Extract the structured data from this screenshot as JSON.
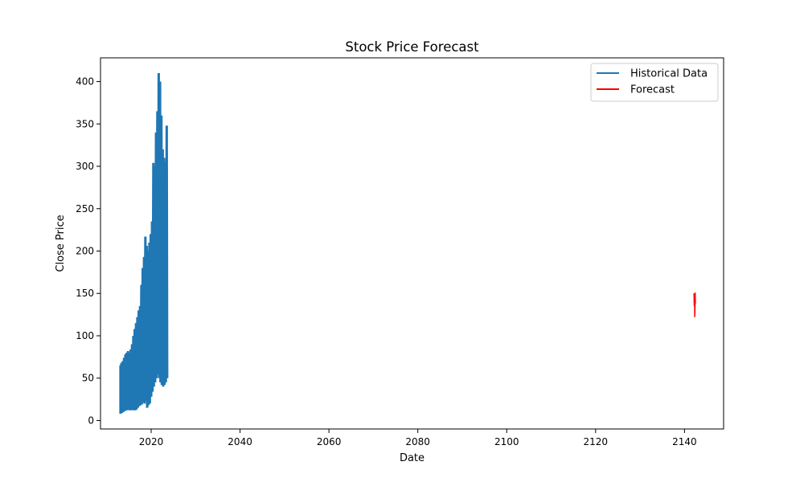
{
  "chart_data": {
    "type": "line",
    "title": "Stock Price Forecast",
    "xlabel": "Date",
    "ylabel": "Close Price",
    "xlim": [
      2008.6,
      2148.8
    ],
    "ylim": [
      -10,
      428
    ],
    "x_ticks": [
      2020,
      2040,
      2060,
      2080,
      2100,
      2120,
      2140
    ],
    "y_ticks": [
      0,
      50,
      100,
      150,
      200,
      250,
      300,
      350,
      400
    ],
    "grid": false,
    "legend_position": "top-right",
    "series": [
      {
        "name": "Historical Data",
        "color": "#1f77b4",
        "points": [
          [
            2013.1,
            65
          ],
          [
            2013.1,
            8
          ],
          [
            2013.3,
            68
          ],
          [
            2013.4,
            9
          ],
          [
            2013.6,
            70
          ],
          [
            2013.7,
            10
          ],
          [
            2013.9,
            74
          ],
          [
            2014.0,
            11
          ],
          [
            2014.2,
            78
          ],
          [
            2014.3,
            12
          ],
          [
            2014.5,
            80
          ],
          [
            2014.6,
            12
          ],
          [
            2014.8,
            82
          ],
          [
            2014.9,
            13
          ],
          [
            2015.1,
            80
          ],
          [
            2015.2,
            12
          ],
          [
            2015.4,
            84
          ],
          [
            2015.5,
            12
          ],
          [
            2015.7,
            90
          ],
          [
            2015.8,
            13
          ],
          [
            2016.0,
            100
          ],
          [
            2016.1,
            12
          ],
          [
            2016.3,
            108
          ],
          [
            2016.4,
            12
          ],
          [
            2016.6,
            115
          ],
          [
            2016.7,
            13
          ],
          [
            2016.9,
            122
          ],
          [
            2017.0,
            15
          ],
          [
            2017.2,
            130
          ],
          [
            2017.3,
            17
          ],
          [
            2017.5,
            135
          ],
          [
            2017.6,
            18
          ],
          [
            2017.8,
            160
          ],
          [
            2017.9,
            19
          ],
          [
            2018.1,
            180
          ],
          [
            2018.2,
            22
          ],
          [
            2018.4,
            193
          ],
          [
            2018.5,
            20
          ],
          [
            2018.7,
            217
          ],
          [
            2018.8,
            23
          ],
          [
            2019.0,
            206
          ],
          [
            2019.1,
            15
          ],
          [
            2019.3,
            200
          ],
          [
            2019.4,
            18
          ],
          [
            2019.6,
            210
          ],
          [
            2019.7,
            20
          ],
          [
            2019.9,
            220
          ],
          [
            2020.0,
            28
          ],
          [
            2020.2,
            235
          ],
          [
            2020.3,
            34
          ],
          [
            2020.5,
            304
          ],
          [
            2020.6,
            40
          ],
          [
            2020.8,
            300
          ],
          [
            2020.9,
            45
          ],
          [
            2021.1,
            340
          ],
          [
            2021.2,
            50
          ],
          [
            2021.4,
            365
          ],
          [
            2021.5,
            55
          ],
          [
            2021.7,
            410
          ],
          [
            2021.8,
            50
          ],
          [
            2022.0,
            400
          ],
          [
            2022.1,
            45
          ],
          [
            2022.3,
            360
          ],
          [
            2022.4,
            42
          ],
          [
            2022.6,
            320
          ],
          [
            2022.7,
            40
          ],
          [
            2022.9,
            310
          ],
          [
            2023.0,
            42
          ],
          [
            2023.2,
            305
          ],
          [
            2023.3,
            45
          ],
          [
            2023.5,
            348
          ],
          [
            2023.6,
            50
          ]
        ]
      },
      {
        "name": "Forecast",
        "color": "#ff0000",
        "points": [
          [
            2142.1,
            150
          ],
          [
            2142.15,
            148
          ],
          [
            2142.2,
            135
          ],
          [
            2142.25,
            146
          ],
          [
            2142.3,
            140
          ],
          [
            2142.3,
            122
          ],
          [
            2142.35,
            130
          ],
          [
            2142.4,
            145
          ],
          [
            2142.4,
            151
          ],
          [
            2142.45,
            138
          ]
        ]
      }
    ]
  }
}
